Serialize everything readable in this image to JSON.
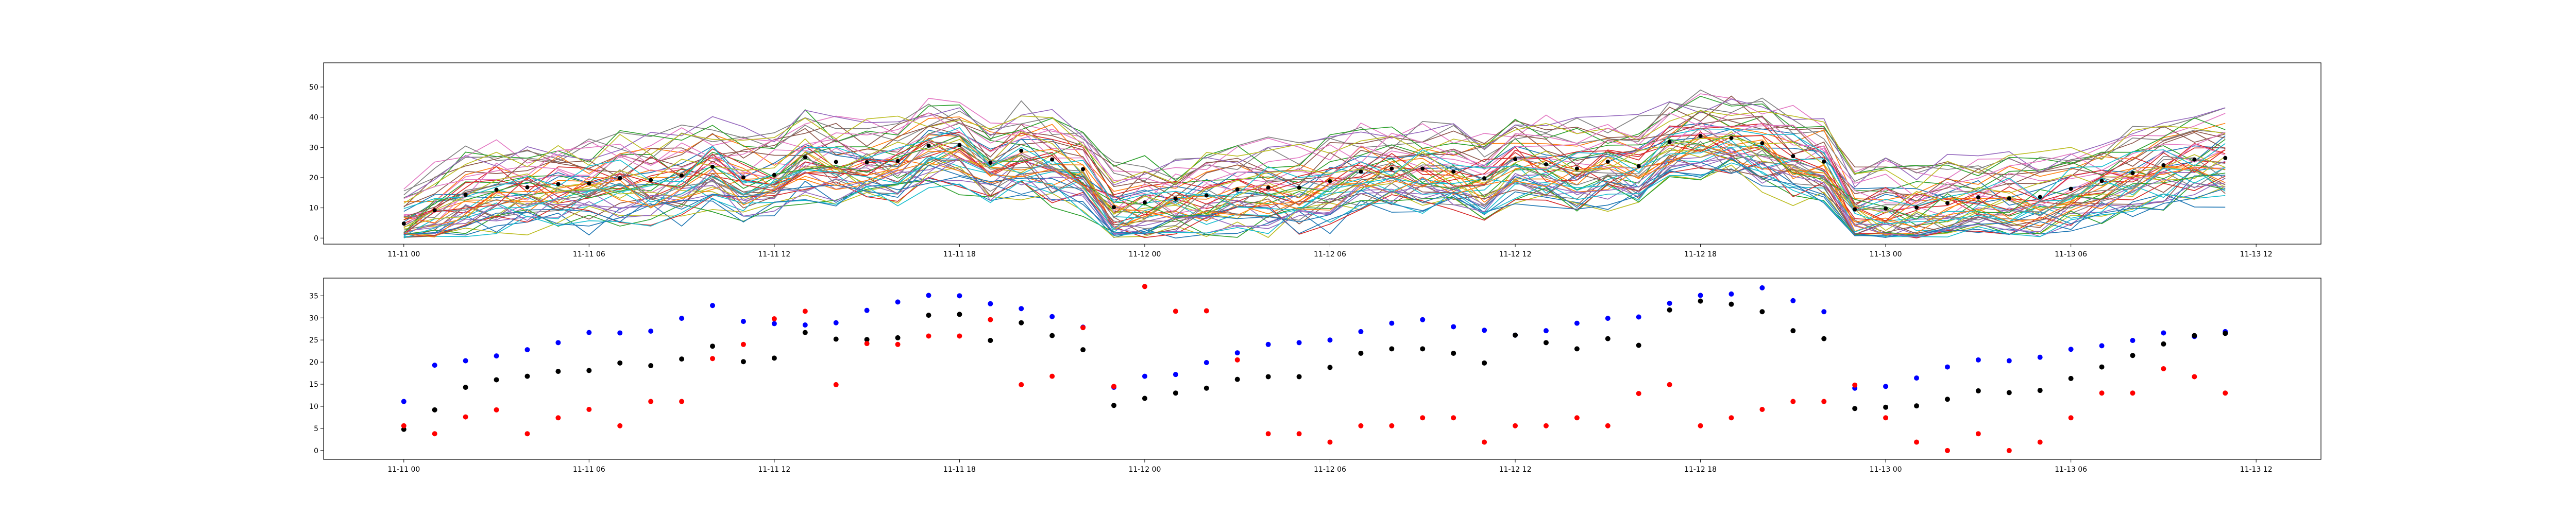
{
  "chart_data": [
    {
      "type": "line",
      "xlabel": "",
      "ylabel": "",
      "ylim": [
        -2,
        58
      ],
      "yticks": [
        0,
        10,
        20,
        30,
        40,
        50
      ],
      "xlim": [
        "2021-11-10T21:24",
        "2021-11-13T14:06"
      ],
      "xticks": [
        {
          "t": "2021-11-11T00:00",
          "label": "11-11 00"
        },
        {
          "t": "2021-11-11T06:00",
          "label": "11-11 06"
        },
        {
          "t": "2021-11-11T12:00",
          "label": "11-11 12"
        },
        {
          "t": "2021-11-11T18:00",
          "label": "11-11 18"
        },
        {
          "t": "2021-11-12T00:00",
          "label": "11-12 00"
        },
        {
          "t": "2021-11-12T06:00",
          "label": "11-12 06"
        },
        {
          "t": "2021-11-12T12:00",
          "label": "11-12 12"
        },
        {
          "t": "2021-11-12T18:00",
          "label": "11-12 18"
        },
        {
          "t": "2021-11-13T00:00",
          "label": "11-13 00"
        },
        {
          "t": "2021-11-13T06:00",
          "label": "11-13 06"
        },
        {
          "t": "2021-11-13T12:00",
          "label": "11-13 12"
        }
      ],
      "grid": false,
      "time_start": "2021-11-11T00:00",
      "time_step_hours": 1,
      "line_count": 50,
      "line_colors": [
        "#1f77b4",
        "#ff7f0e",
        "#2ca02c",
        "#d62728",
        "#9467bd",
        "#8c564b",
        "#e377c2",
        "#7f7f7f",
        "#bcbd22",
        "#17becf"
      ],
      "mean": [
        4.8,
        9.2,
        14.3,
        16.0,
        16.8,
        17.9,
        18.1,
        19.8,
        19.2,
        20.7,
        23.6,
        20.1,
        20.9,
        26.7,
        25.2,
        25.1,
        25.5,
        30.6,
        30.8,
        24.9,
        28.9,
        26.0,
        22.8,
        10.2,
        11.8,
        13.0,
        14.1,
        16.1,
        16.7,
        16.7,
        18.8,
        22.0,
        23.0,
        23.0,
        22.0,
        19.8,
        26.1,
        24.4,
        23.0,
        25.3,
        23.8,
        31.8,
        33.8,
        33.1,
        31.4,
        27.1,
        25.3,
        9.5,
        9.8,
        10.1,
        11.6,
        13.5,
        13.1,
        13.6,
        16.3,
        18.9,
        21.5,
        24.1,
        26.0,
        26.5
      ],
      "mean_color": "#000000"
    },
    {
      "type": "scatter",
      "xlabel": "",
      "ylabel": "",
      "ylim": [
        -2,
        39
      ],
      "yticks": [
        0,
        5,
        10,
        15,
        20,
        25,
        30,
        35
      ],
      "xlim": [
        "2021-11-10T21:24",
        "2021-11-13T14:06"
      ],
      "xticks": [
        {
          "t": "2021-11-11T00:00",
          "label": "11-11 00"
        },
        {
          "t": "2021-11-11T06:00",
          "label": "11-11 06"
        },
        {
          "t": "2021-11-11T12:00",
          "label": "11-11 12"
        },
        {
          "t": "2021-11-11T18:00",
          "label": "11-11 18"
        },
        {
          "t": "2021-11-12T00:00",
          "label": "11-12 00"
        },
        {
          "t": "2021-11-12T06:00",
          "label": "11-12 06"
        },
        {
          "t": "2021-11-12T12:00",
          "label": "11-12 12"
        },
        {
          "t": "2021-11-12T18:00",
          "label": "11-12 18"
        },
        {
          "t": "2021-11-13T00:00",
          "label": "11-13 00"
        },
        {
          "t": "2021-11-13T06:00",
          "label": "11-13 06"
        },
        {
          "t": "2021-11-13T12:00",
          "label": "11-13 12"
        }
      ],
      "grid": false,
      "time_start": "2021-11-11T00:00",
      "time_step_hours": 1,
      "series": [
        {
          "color": "#0000ff",
          "values": [
            11.1,
            19.3,
            20.3,
            21.4,
            22.8,
            24.4,
            26.7,
            26.6,
            27.0,
            29.9,
            32.8,
            29.2,
            28.7,
            28.4,
            28.9,
            31.7,
            33.6,
            35.1,
            35.0,
            33.2,
            32.1,
            30.3,
            27.9,
            14.3,
            16.8,
            17.2,
            19.9,
            22.1,
            24.0,
            24.4,
            25.0,
            26.9,
            28.8,
            29.6,
            28.0,
            27.2,
            26.1,
            27.1,
            28.8,
            29.9,
            30.2,
            33.3,
            35.1,
            35.4,
            36.8,
            33.9,
            31.4,
            14.1,
            14.5,
            16.4,
            18.9,
            20.5,
            20.3,
            21.1,
            22.9,
            23.7,
            24.9,
            26.6,
            25.8,
            26.9
          ]
        },
        {
          "color": "#000000",
          "values": [
            4.8,
            9.2,
            14.3,
            16.0,
            16.8,
            17.9,
            18.1,
            19.8,
            19.2,
            20.7,
            23.6,
            20.1,
            20.9,
            26.7,
            25.2,
            25.1,
            25.5,
            30.6,
            30.8,
            24.9,
            28.9,
            26.0,
            22.8,
            10.2,
            11.8,
            13.0,
            14.1,
            16.1,
            16.7,
            16.7,
            18.8,
            22.0,
            23.0,
            23.0,
            22.0,
            19.8,
            26.1,
            24.4,
            23.0,
            25.3,
            23.8,
            31.8,
            33.8,
            33.1,
            31.4,
            27.1,
            25.3,
            9.5,
            9.8,
            10.1,
            11.6,
            13.5,
            13.1,
            13.6,
            16.3,
            18.9,
            21.5,
            24.1,
            26.0,
            26.5
          ]
        },
        {
          "color": "#ff0000",
          "values": [
            5.6,
            3.8,
            7.6,
            9.2,
            3.8,
            7.4,
            9.3,
            5.6,
            11.1,
            11.1,
            20.8,
            24.0,
            29.8,
            31.5,
            14.9,
            24.2,
            24.0,
            25.9,
            25.9,
            29.6,
            14.9,
            16.8,
            27.8,
            14.5,
            37.1,
            31.5,
            31.6,
            20.5,
            3.8,
            3.8,
            1.9,
            5.6,
            5.6,
            7.4,
            7.4,
            1.9,
            5.6,
            5.6,
            7.4,
            5.6,
            12.9,
            14.9,
            5.6,
            7.4,
            9.3,
            11.1,
            11.1,
            14.8,
            7.4,
            1.9,
            0.0,
            3.8,
            0.0,
            1.9,
            7.4,
            13.0,
            13.0,
            18.5,
            16.7,
            13.0
          ]
        }
      ],
      "marker_size": 5
    }
  ]
}
